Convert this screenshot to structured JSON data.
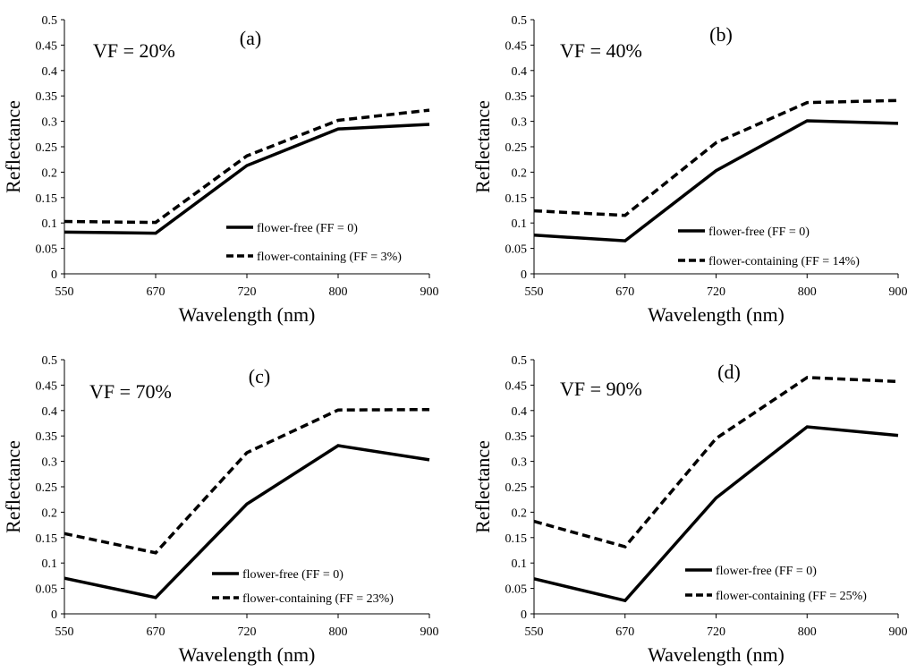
{
  "chart_data": [
    {
      "type": "line",
      "panel_label": "(a)",
      "annotation": "VF = 20%",
      "xlabel": "Wavelength (nm)",
      "ylabel": "Reflectance",
      "categories": [
        "550",
        "670",
        "720",
        "800",
        "900"
      ],
      "ylim": [
        0,
        0.5
      ],
      "yticks": [
        "0",
        "0.05",
        "0.1",
        "0.15",
        "0.2",
        "0.25",
        "0.3",
        "0.35",
        "0.4",
        "0.45",
        "0.5"
      ],
      "grid": false,
      "legend_position": "bottom-right",
      "series": [
        {
          "name": "flower-free (FF = 0)",
          "style": "solid",
          "values": [
            0.082,
            0.08,
            0.213,
            0.285,
            0.294
          ]
        },
        {
          "name": "flower-containing (FF = 3%)",
          "style": "dashed",
          "values": [
            0.103,
            0.101,
            0.232,
            0.302,
            0.322
          ]
        }
      ]
    },
    {
      "type": "line",
      "panel_label": "(b)",
      "annotation": "VF = 40%",
      "xlabel": "Wavelength (nm)",
      "ylabel": "Reflectance",
      "categories": [
        "550",
        "670",
        "720",
        "800",
        "900"
      ],
      "ylim": [
        0,
        0.5
      ],
      "yticks": [
        "0",
        "0.05",
        "0.1",
        "0.15",
        "0.2",
        "0.25",
        "0.3",
        "0.35",
        "0.4",
        "0.45",
        "0.5"
      ],
      "grid": false,
      "legend_position": "bottom-right",
      "series": [
        {
          "name": "flower-free (FF = 0)",
          "style": "solid",
          "values": [
            0.076,
            0.065,
            0.203,
            0.301,
            0.296
          ]
        },
        {
          "name": "flower-containing (FF = 14%)",
          "style": "dashed",
          "values": [
            0.124,
            0.115,
            0.258,
            0.337,
            0.341
          ]
        }
      ]
    },
    {
      "type": "line",
      "panel_label": "(c)",
      "annotation": "VF = 70%",
      "xlabel": "Wavelength (nm)",
      "ylabel": "Reflectance",
      "categories": [
        "550",
        "670",
        "720",
        "800",
        "900"
      ],
      "ylim": [
        0,
        0.5
      ],
      "yticks": [
        "0",
        "0.05",
        "0.1",
        "0.15",
        "0.2",
        "0.25",
        "0.3",
        "0.35",
        "0.4",
        "0.45",
        "0.5"
      ],
      "grid": false,
      "legend_position": "bottom-right",
      "series": [
        {
          "name": "flower-free (FF = 0)",
          "style": "solid",
          "values": [
            0.07,
            0.032,
            0.216,
            0.331,
            0.303
          ]
        },
        {
          "name": "flower-containing (FF = 23%)",
          "style": "dashed",
          "values": [
            0.158,
            0.12,
            0.317,
            0.401,
            0.402
          ]
        }
      ]
    },
    {
      "type": "line",
      "panel_label": "(d)",
      "annotation": "VF = 90%",
      "xlabel": "Wavelength (nm)",
      "ylabel": "Reflectance",
      "categories": [
        "550",
        "670",
        "720",
        "800",
        "900"
      ],
      "ylim": [
        0,
        0.5
      ],
      "yticks": [
        "0",
        "0.05",
        "0.1",
        "0.15",
        "0.2",
        "0.25",
        "0.3",
        "0.35",
        "0.4",
        "0.45",
        "0.5"
      ],
      "grid": false,
      "legend_position": "bottom-right",
      "series": [
        {
          "name": "flower-free (FF = 0)",
          "style": "solid",
          "values": [
            0.069,
            0.026,
            0.228,
            0.368,
            0.351
          ]
        },
        {
          "name": "flower-containing (FF = 25%)",
          "style": "dashed",
          "values": [
            0.182,
            0.132,
            0.345,
            0.465,
            0.457
          ]
        }
      ]
    }
  ]
}
